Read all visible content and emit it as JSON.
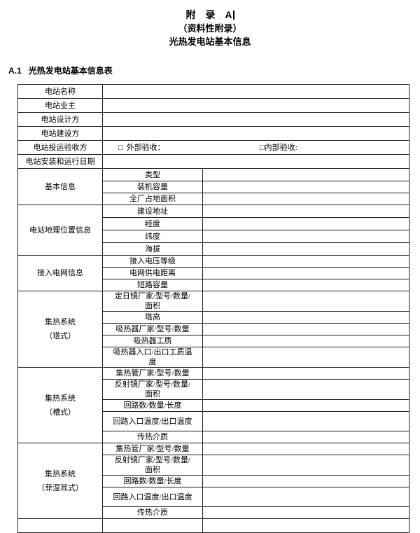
{
  "document": {
    "appendix_title": "附　录　A",
    "appendix_subtitle": "（资料性附录）",
    "appendix_name": "光热发电站基本信息",
    "section_number": "A.1",
    "section_title": "光热发电站基本信息表"
  },
  "table": {
    "checkbox_symbol": "□",
    "simple_rows": [
      {
        "label": "电站名称",
        "value": ""
      },
      {
        "label": "电站业主",
        "value": ""
      },
      {
        "label": "电站设计方",
        "value": ""
      },
      {
        "label": "电站建设方",
        "value": ""
      },
      {
        "label": "电站投运验收方",
        "acceptance": {
          "external": "外部验收：",
          "internal": "内部验收:"
        }
      },
      {
        "label": "电站安装和运行日期",
        "value": ""
      }
    ],
    "groups": [
      {
        "label_lines": [
          "基本信息"
        ],
        "items": [
          "类型",
          "装机容量",
          "全厂占地面积"
        ]
      },
      {
        "label_lines": [
          "电站地理位置信息"
        ],
        "items": [
          "建设地址",
          "经度",
          "纬度",
          "海拔"
        ]
      },
      {
        "label_lines": [
          "接入电网信息"
        ],
        "items": [
          "接入电压等级",
          "电网供电距离",
          "短路容量"
        ]
      },
      {
        "label_lines": [
          "集热系统",
          "（塔式）"
        ],
        "items": [
          "定日镜厂家/型号/数量/面积",
          "塔高",
          "吸热器厂家/型号/数量",
          "吸热器工质",
          "吸热器入口/出口工质温度"
        ]
      },
      {
        "label_lines": [
          "集热系统",
          "（槽式）"
        ],
        "items": [
          "集热管厂家/型号/数量",
          "反射镜厂家/型号/数量/面积",
          "回路数/数量/长度",
          "回路入口温度/出口温度",
          "传热介质"
        ]
      },
      {
        "label_lines": [
          "集热系统",
          "（菲涅耳式）"
        ],
        "items": [
          "集热管厂家/型号/数量",
          "反射镜厂家/型号/数量/面积",
          "回路数/数量/长度",
          "回路入口温度/出口温度",
          "传热介质"
        ]
      }
    ]
  }
}
